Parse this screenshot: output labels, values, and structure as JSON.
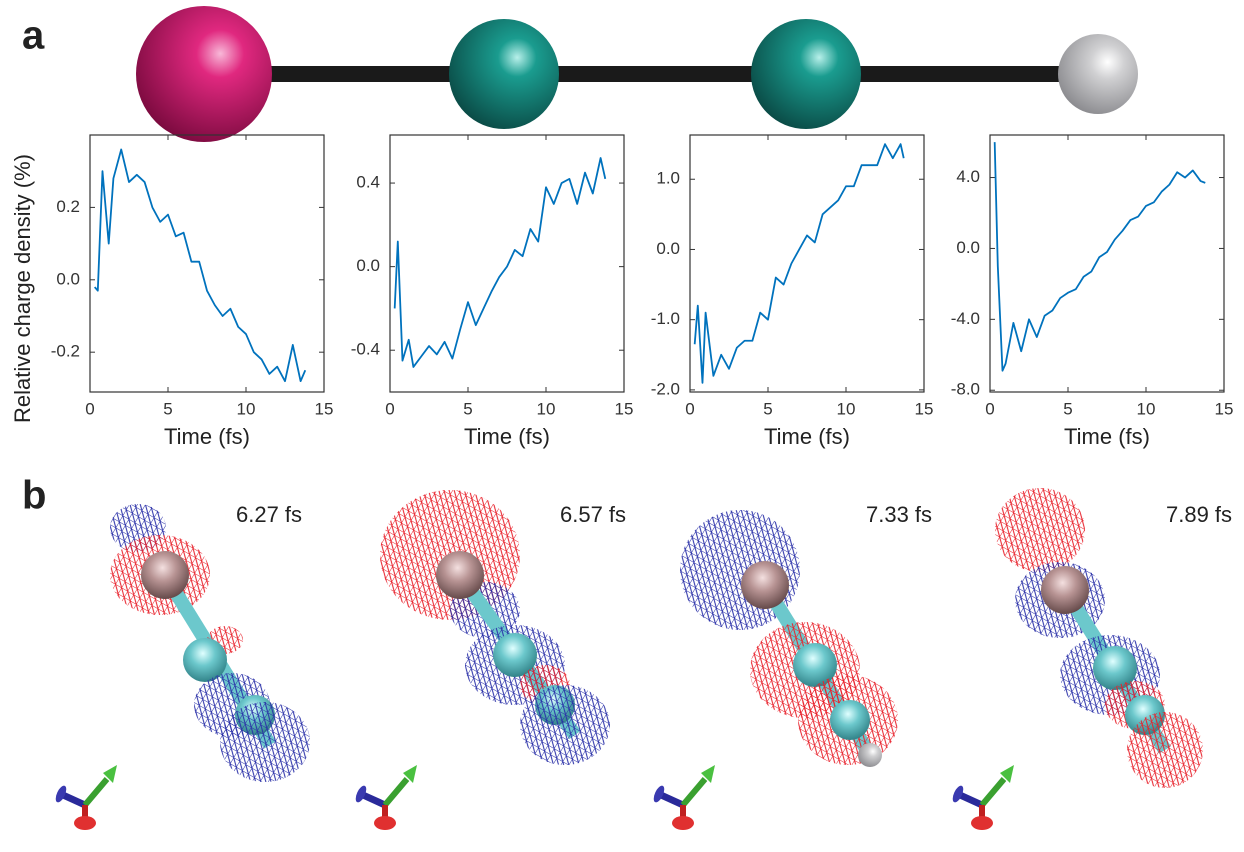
{
  "panel_labels": [
    "a",
    "b"
  ],
  "snapshots": [
    "6.27 fs",
    "6.57 fs",
    "7.33 fs",
    "7.89 fs"
  ],
  "chart_data": [
    {
      "type": "line",
      "ylabel": "Relative charge density (%)",
      "xlabel": "Time (fs)",
      "color": "#0072bd",
      "x": [
        0.3,
        0.5,
        0.8,
        1.2,
        1.5,
        2.0,
        2.5,
        3.0,
        3.5,
        4.0,
        4.5,
        5.0,
        5.5,
        6.0,
        6.5,
        7.0,
        7.5,
        8.0,
        8.5,
        9.0,
        9.5,
        10.0,
        10.5,
        11.0,
        11.5,
        12.0,
        12.5,
        13.0,
        13.5,
        13.8
      ],
      "values": [
        -0.02,
        -0.03,
        0.3,
        0.1,
        0.28,
        0.36,
        0.27,
        0.29,
        0.27,
        0.2,
        0.16,
        0.18,
        0.12,
        0.13,
        0.05,
        0.05,
        -0.03,
        -0.07,
        -0.1,
        -0.08,
        -0.13,
        -0.15,
        -0.2,
        -0.22,
        -0.26,
        -0.24,
        -0.28,
        -0.18,
        -0.28,
        -0.25
      ],
      "xlim": [
        0,
        15
      ],
      "xticks": [
        0,
        5,
        10,
        15
      ],
      "ylim": [
        -0.31,
        0.4
      ],
      "yticks": [
        -0.2,
        {
          "value": 0,
          "label": "0.0"
        },
        0.2
      ]
    },
    {
      "type": "line",
      "xlabel": "Time (fs)",
      "color": "#0072bd",
      "x": [
        0.3,
        0.5,
        0.8,
        1.2,
        1.5,
        2.0,
        2.5,
        3.0,
        3.5,
        4.0,
        4.5,
        5.0,
        5.5,
        6.0,
        6.5,
        7.0,
        7.5,
        8.0,
        8.5,
        9.0,
        9.5,
        10.0,
        10.5,
        11.0,
        11.5,
        12.0,
        12.5,
        13.0,
        13.5,
        13.8
      ],
      "values": [
        -0.2,
        0.12,
        -0.45,
        -0.35,
        -0.48,
        -0.43,
        -0.38,
        -0.42,
        -0.36,
        -0.44,
        -0.3,
        -0.17,
        -0.28,
        -0.2,
        -0.12,
        -0.05,
        0.0,
        0.08,
        0.05,
        0.18,
        0.12,
        0.38,
        0.3,
        0.4,
        0.42,
        0.3,
        0.45,
        0.35,
        0.52,
        0.42
      ],
      "xlim": [
        0,
        15
      ],
      "xticks": [
        0,
        5,
        10,
        15
      ],
      "ylim": [
        -0.6,
        0.63
      ],
      "yticks": [
        -0.4,
        {
          "value": 0,
          "label": "0.0"
        },
        0.4
      ]
    },
    {
      "type": "line",
      "xlabel": "Time (fs)",
      "color": "#0072bd",
      "x": [
        0.3,
        0.5,
        0.8,
        1.0,
        1.5,
        2.0,
        2.5,
        3.0,
        3.5,
        4.0,
        4.5,
        5.0,
        5.5,
        6.0,
        6.5,
        7.0,
        7.5,
        8.0,
        8.5,
        9.0,
        9.5,
        10.0,
        10.5,
        11.0,
        11.5,
        12.0,
        12.5,
        13.0,
        13.5,
        13.7
      ],
      "values": [
        -1.35,
        -0.8,
        -1.9,
        -0.9,
        -1.8,
        -1.5,
        -1.7,
        -1.4,
        -1.3,
        -1.3,
        -0.9,
        -1.0,
        -0.4,
        -0.5,
        -0.2,
        0.0,
        0.2,
        0.1,
        0.5,
        0.6,
        0.7,
        0.9,
        0.9,
        1.2,
        1.2,
        1.2,
        1.5,
        1.3,
        1.5,
        1.3
      ],
      "xlim": [
        0,
        15
      ],
      "xticks": [
        0,
        5,
        10,
        15
      ],
      "ylim": [
        -2.03,
        1.63
      ],
      "yticks": [
        {
          "value": -2,
          "label": "-2.0"
        },
        {
          "value": -1,
          "label": "-1.0"
        },
        {
          "value": 0,
          "label": "0.0"
        },
        {
          "value": 1,
          "label": "1.0"
        }
      ]
    },
    {
      "type": "line",
      "xlabel": "Time (fs)",
      "color": "#0072bd",
      "x": [
        0.3,
        0.5,
        0.8,
        1.0,
        1.5,
        2.0,
        2.5,
        3.0,
        3.5,
        4.0,
        4.5,
        5.0,
        5.5,
        6.0,
        6.5,
        7.0,
        7.5,
        8.0,
        8.5,
        9.0,
        9.5,
        10.0,
        10.5,
        11.0,
        11.5,
        12.0,
        12.5,
        13.0,
        13.5,
        13.8
      ],
      "values": [
        6,
        -1,
        -6.9,
        -6.5,
        -4.2,
        -5.8,
        -4.0,
        -5.0,
        -3.8,
        -3.5,
        -2.8,
        -2.5,
        -2.3,
        -1.6,
        -1.3,
        -0.5,
        -0.2,
        0.5,
        1.0,
        1.6,
        1.8,
        2.4,
        2.6,
        3.2,
        3.6,
        4.3,
        4.0,
        4.4,
        3.8,
        3.7
      ],
      "xlim": [
        0,
        15
      ],
      "xticks": [
        0,
        5,
        10,
        15
      ],
      "ylim": [
        -8.1,
        6.4
      ],
      "yticks": [
        {
          "value": -8,
          "label": "-8.0"
        },
        {
          "value": -4,
          "label": "-4.0"
        },
        {
          "value": 0,
          "label": "0.0"
        },
        {
          "value": 4,
          "label": "4.0"
        }
      ]
    }
  ]
}
